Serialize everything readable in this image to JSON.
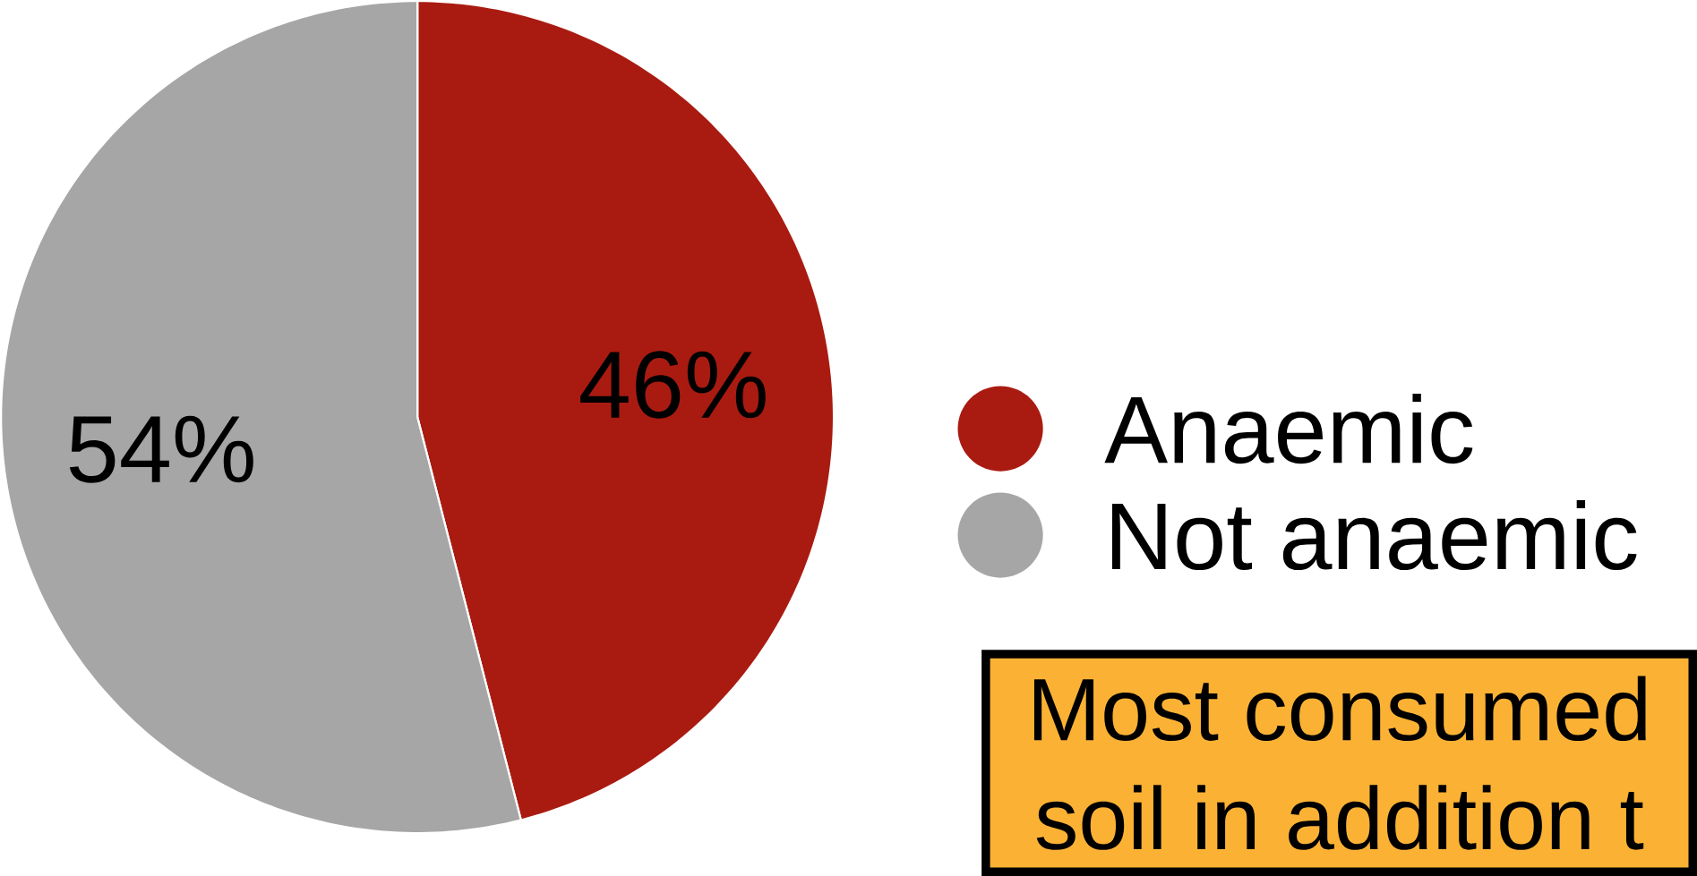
{
  "chart_data": {
    "type": "pie",
    "categories": [
      "Anaemic",
      "Not anaemic"
    ],
    "values": [
      46,
      54
    ],
    "colors": [
      "#a91b11",
      "#a6a6a6"
    ],
    "value_labels": [
      "46%",
      "54%"
    ],
    "legend": "right",
    "annotations": [
      "Most consumed",
      "soil in addition t"
    ]
  }
}
